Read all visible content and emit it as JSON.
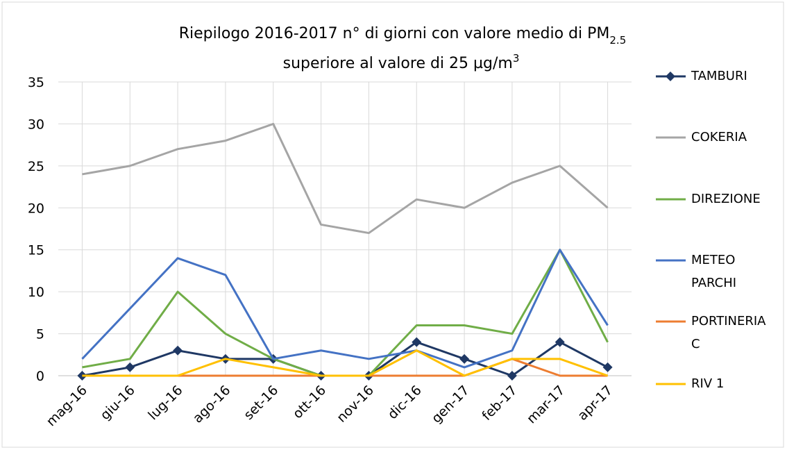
{
  "chart_data": {
    "type": "line",
    "title": {
      "line1": "Riepilogo  2016-2017 n° di giorni con valore medio di PM",
      "line1_sub": "2.5",
      "line2": "superiore al valore di 25 µg/m",
      "line2_sup": "3"
    },
    "categories": [
      "mag-16",
      "giu-16",
      "lug-16",
      "ago-16",
      "set-16",
      "ott-16",
      "nov-16",
      "dic-16",
      "gen-17",
      "feb-17",
      "mar-17",
      "apr-17"
    ],
    "series": [
      {
        "name": "TAMBURI",
        "color": "#1f3864",
        "marker": "diamond",
        "values": [
          0,
          1,
          3,
          2,
          2,
          0,
          0,
          4,
          2,
          0,
          4,
          1
        ]
      },
      {
        "name": "COKERIA",
        "color": "#a5a5a5",
        "values": [
          24,
          25,
          27,
          28,
          30,
          18,
          17,
          21,
          20,
          23,
          25,
          20
        ]
      },
      {
        "name": "DIREZIONE",
        "color": "#70ad47",
        "values": [
          1,
          2,
          10,
          5,
          2,
          0,
          0,
          6,
          6,
          5,
          15,
          4
        ]
      },
      {
        "name": "METEO PARCHI",
        "color": "#4472c4",
        "values": [
          2,
          8,
          14,
          12,
          2,
          3,
          2,
          3,
          1,
          3,
          15,
          6
        ]
      },
      {
        "name": "PORTINERIA C",
        "color": "#ed7d31",
        "values": [
          0,
          0,
          0,
          0,
          0,
          0,
          0,
          0,
          0,
          2,
          0,
          0
        ]
      },
      {
        "name": "RIV 1",
        "color": "#ffc000",
        "values": [
          0,
          0,
          0,
          2,
          1,
          0,
          0,
          3,
          0,
          2,
          2,
          0
        ]
      }
    ],
    "ylim": [
      0,
      35
    ],
    "yticks": [
      0,
      5,
      10,
      15,
      20,
      25,
      30,
      35
    ],
    "grid": true,
    "legend": "right"
  }
}
